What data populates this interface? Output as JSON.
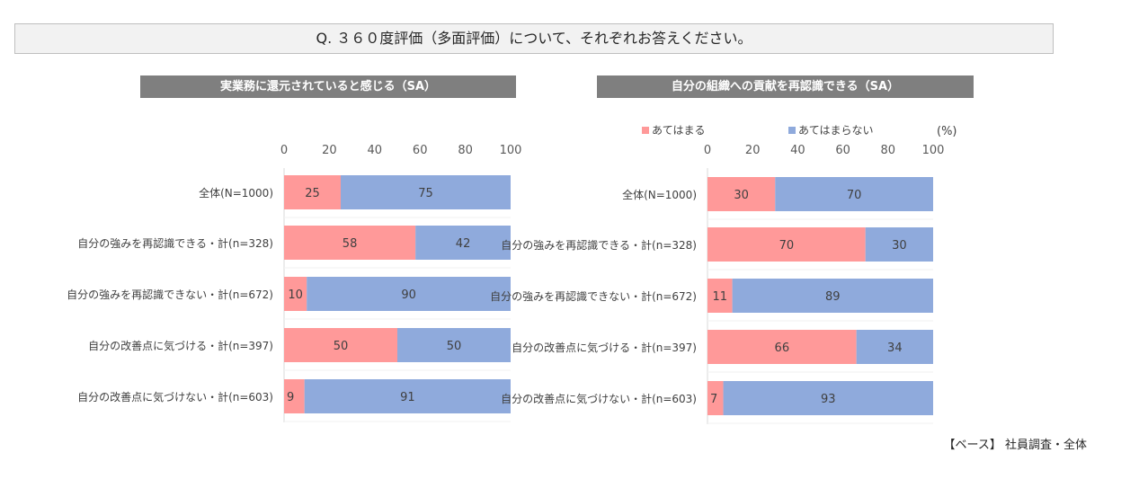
{
  "question": "Q. ３６０度評価（多面評価）について、それぞれお答えください。",
  "base_note": "【ベース】 社員調査・全体",
  "colors": {
    "yes": "#ff9999",
    "no": "#8faadc",
    "header_bg": "#7f7f7f",
    "axis": "#595959"
  },
  "legend": {
    "yes_label": "あてはまる",
    "no_label": "あてはまらない",
    "unit": "(%)"
  },
  "chart_data": [
    {
      "type": "bar",
      "orientation": "horizontal-stacked",
      "title": "実業務に還元されていると感じる（SA）",
      "xlim": [
        0,
        100
      ],
      "ticks": [
        0,
        20,
        40,
        60,
        80,
        100
      ],
      "categories": [
        "全体(N=1000)",
        "自分の強みを再認識できる・計(n=328)",
        "自分の強みを再認識できない・計(n=672)",
        "自分の改善点に気づける・計(n=397)",
        "自分の改善点に気づけない・計(n=603)"
      ],
      "series": [
        {
          "name": "あてはまる",
          "values": [
            25,
            58,
            10,
            50,
            9
          ]
        },
        {
          "name": "あてはまらない",
          "values": [
            75,
            42,
            90,
            50,
            91
          ]
        }
      ]
    },
    {
      "type": "bar",
      "orientation": "horizontal-stacked",
      "title": "自分の組織への貢献を再認識できる（SA）",
      "xlim": [
        0,
        100
      ],
      "ticks": [
        0,
        20,
        40,
        60,
        80,
        100
      ],
      "categories": [
        "全体(N=1000)",
        "自分の強みを再認識できる・計(n=328)",
        "自分の強みを再認識できない・計(n=672)",
        "自分の改善点に気づける・計(n=397)",
        "自分の改善点に気づけない・計(n=603)"
      ],
      "series": [
        {
          "name": "あてはまる",
          "values": [
            30,
            70,
            11,
            66,
            7
          ]
        },
        {
          "name": "あてはまらない",
          "values": [
            70,
            30,
            89,
            34,
            93
          ]
        }
      ]
    }
  ]
}
